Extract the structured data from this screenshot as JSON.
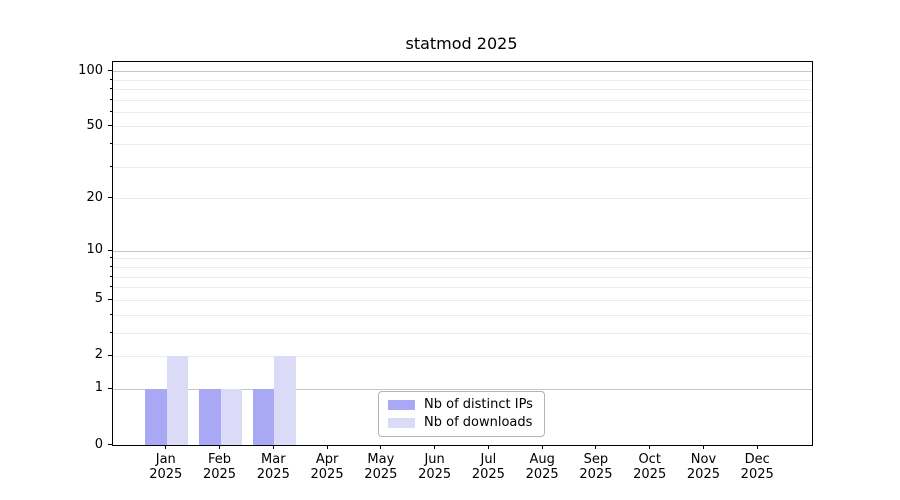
{
  "figure": {
    "title": "statmod 2025"
  },
  "chart_data": {
    "type": "bar",
    "title": "statmod 2025",
    "categories": [
      {
        "month": "Jan",
        "year": "2025"
      },
      {
        "month": "Feb",
        "year": "2025"
      },
      {
        "month": "Mar",
        "year": "2025"
      },
      {
        "month": "Apr",
        "year": "2025"
      },
      {
        "month": "May",
        "year": "2025"
      },
      {
        "month": "Jun",
        "year": "2025"
      },
      {
        "month": "Jul",
        "year": "2025"
      },
      {
        "month": "Aug",
        "year": "2025"
      },
      {
        "month": "Sep",
        "year": "2025"
      },
      {
        "month": "Oct",
        "year": "2025"
      },
      {
        "month": "Nov",
        "year": "2025"
      },
      {
        "month": "Dec",
        "year": "2025"
      }
    ],
    "series": [
      {
        "name": "Nb of distinct IPs",
        "color": "#a8a8f5",
        "values": [
          1,
          1,
          1,
          0,
          0,
          0,
          0,
          0,
          0,
          0,
          0,
          0
        ]
      },
      {
        "name": "Nb of downloads",
        "color": "#dbdbf8",
        "values": [
          2,
          1,
          2,
          0,
          0,
          0,
          0,
          0,
          0,
          0,
          0,
          0
        ]
      }
    ],
    "y_axis": {
      "scale": "log1p",
      "tick_values": [
        0,
        1,
        2,
        5,
        10,
        20,
        50,
        100
      ],
      "major_grid_values": [
        1,
        10,
        100
      ],
      "minor_grid_values": [
        2,
        3,
        4,
        5,
        6,
        7,
        8,
        9,
        20,
        30,
        40,
        50,
        60,
        70,
        80,
        90
      ],
      "axis_max": 112
    },
    "xlabel": "",
    "ylabel": "",
    "grid": true,
    "legend_position": "lower center",
    "colors": {
      "spine": "#000000",
      "major_grid": "#c6c6c6",
      "minor_grid": "#ebebeb",
      "legend_border": "#b3b3b3",
      "text": "#000000",
      "background": "#ffffff"
    }
  }
}
